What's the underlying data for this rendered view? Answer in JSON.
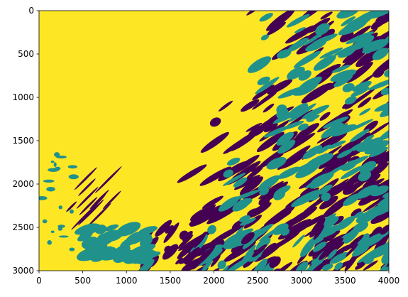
{
  "chart_data": {
    "type": "heatmap",
    "title": "",
    "xlabel": "",
    "ylabel": "",
    "xlim": [
      0,
      4000
    ],
    "ylim": [
      3000,
      0
    ],
    "y_inverted": true,
    "x_ticks": [
      0,
      500,
      1000,
      1500,
      2000,
      2500,
      3000,
      3500,
      4000
    ],
    "y_ticks": [
      0,
      500,
      1000,
      1500,
      2000,
      2500,
      3000
    ],
    "x_tick_labels": [
      "0",
      "500",
      "1000",
      "1500",
      "2000",
      "2500",
      "3000",
      "3500",
      "4000"
    ],
    "y_tick_labels": [
      "0",
      "500",
      "1000",
      "1500",
      "2000",
      "2500",
      "3000"
    ],
    "grid": false,
    "colormap": "viridis",
    "classes": [
      {
        "value": 0,
        "color": "#440154"
      },
      {
        "value": 1,
        "color": "#21918c"
      },
      {
        "value": 2,
        "color": "#fde725"
      }
    ],
    "background_class": 2
  }
}
